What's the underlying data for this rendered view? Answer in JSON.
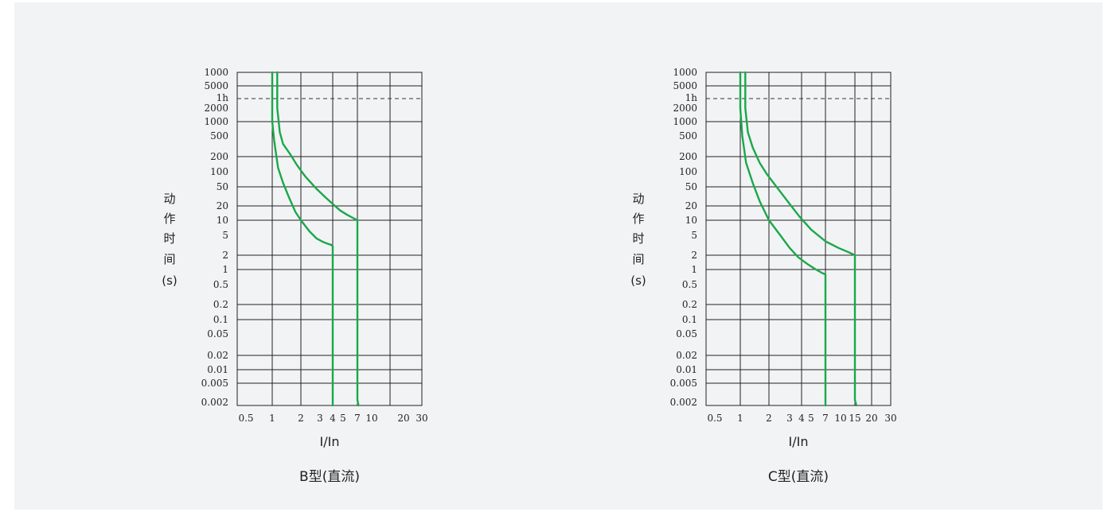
{
  "chart_data": [
    {
      "type": "line",
      "title": "B型(直流)",
      "xlabel": "I/In",
      "ylabel": [
        "动",
        "作",
        "时",
        "间",
        "(s)"
      ],
      "xscale": "log",
      "yscale": "log",
      "grid": true,
      "x_ticks": [
        "0.5",
        "1",
        "2",
        "3",
        "4",
        "5",
        "7",
        "10",
        "20",
        "30"
      ],
      "y_ticks": [
        "1000",
        "5000",
        "1h",
        "2000",
        "1000",
        "500",
        "200",
        "100",
        "50",
        "20",
        "10",
        "5",
        "2",
        "1",
        "0.5",
        "0.2",
        "0.1",
        "0.05",
        "0.02",
        "0.01",
        "0.005",
        "0.002"
      ],
      "reference_line": {
        "label": "1h",
        "style": "dashed"
      },
      "line_color": "#1aa84a",
      "series": [
        {
          "x": [
            1.0,
            1.0,
            1.05,
            1.15,
            1.3,
            1.5,
            1.75,
            2.0,
            2.4,
            2.8,
            3.2,
            3.55,
            3.9,
            4.0,
            4.0
          ],
          "y": [
            100000,
            1000,
            400,
            120,
            60,
            30,
            15,
            10,
            6,
            4.3,
            3.7,
            3.4,
            3.2,
            3.0,
            0.002
          ]
        },
        {
          "x": [
            1.13,
            1.13,
            1.2,
            1.3,
            1.55,
            1.8,
            2.2,
            2.8,
            3.4,
            4.0,
            4.7,
            5.5,
            6.4,
            7.0,
            7.0,
            7.2
          ],
          "y": [
            100000,
            2000,
            600,
            350,
            220,
            140,
            80,
            45,
            30,
            22,
            16,
            13,
            11,
            10,
            0.0025,
            0.002
          ]
        }
      ]
    },
    {
      "type": "line",
      "title": "C型(直流)",
      "xlabel": "I/In",
      "ylabel": [
        "动",
        "作",
        "时",
        "间",
        "(s)"
      ],
      "xscale": "log",
      "yscale": "log",
      "grid": true,
      "x_ticks": [
        "0.5",
        "1",
        "2",
        "3",
        "4",
        "5",
        "7",
        "10",
        "15",
        "20",
        "30"
      ],
      "y_ticks": [
        "1000",
        "5000",
        "1h",
        "2000",
        "1000",
        "500",
        "200",
        "100",
        "50",
        "20",
        "10",
        "5",
        "2",
        "1",
        "0.5",
        "0.2",
        "0.1",
        "0.05",
        "0.02",
        "0.01",
        "0.005",
        "0.002"
      ],
      "reference_line": {
        "label": "1h",
        "style": "dashed"
      },
      "line_color": "#1aa84a",
      "series": [
        {
          "x": [
            1.0,
            1.0,
            1.05,
            1.15,
            1.35,
            1.6,
            2.0,
            2.5,
            3.0,
            3.7,
            4.6,
            5.6,
            6.5,
            7.0,
            7.0
          ],
          "y": [
            100000,
            2000,
            500,
            150,
            60,
            25,
            10,
            5,
            2.8,
            1.8,
            1.3,
            1.0,
            0.85,
            0.8,
            0.002
          ]
        },
        {
          "x": [
            1.13,
            1.13,
            1.2,
            1.35,
            1.6,
            1.9,
            2.4,
            3.0,
            3.8,
            5.0,
            7.0,
            9.5,
            12.5,
            15.0,
            15.0,
            15.4
          ],
          "y": [
            100000,
            2000,
            600,
            300,
            150,
            90,
            45,
            22,
            12,
            6.5,
            3.8,
            2.8,
            2.3,
            2.0,
            0.0025,
            0.002
          ]
        }
      ]
    }
  ]
}
